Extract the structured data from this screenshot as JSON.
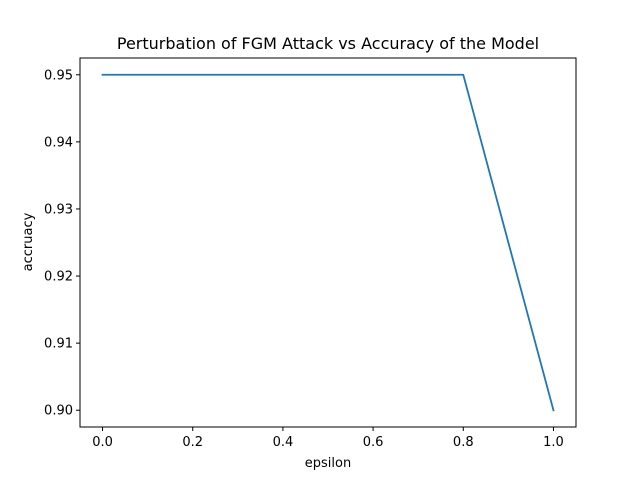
{
  "chart_data": {
    "type": "line",
    "title": "Perturbation of FGM Attack vs Accuracy of the Model",
    "xlabel": "epsilon",
    "ylabel": "accruacy",
    "x": [
      0.0,
      0.8,
      1.0
    ],
    "series": [
      {
        "values": [
          0.95,
          0.95,
          0.9
        ],
        "color": "#1f77b4"
      }
    ],
    "xlim": [
      -0.05,
      1.05
    ],
    "ylim": [
      0.8975,
      0.9525
    ],
    "xticks": [
      0.0,
      0.2,
      0.4,
      0.6,
      0.8,
      1.0
    ],
    "xtick_labels": [
      "0.0",
      "0.2",
      "0.4",
      "0.6",
      "0.8",
      "1.0"
    ],
    "yticks": [
      0.9,
      0.91,
      0.92,
      0.93,
      0.94,
      0.95
    ],
    "ytick_labels": [
      "0.90",
      "0.91",
      "0.92",
      "0.93",
      "0.94",
      "0.95"
    ],
    "grid": false,
    "legend": false
  }
}
